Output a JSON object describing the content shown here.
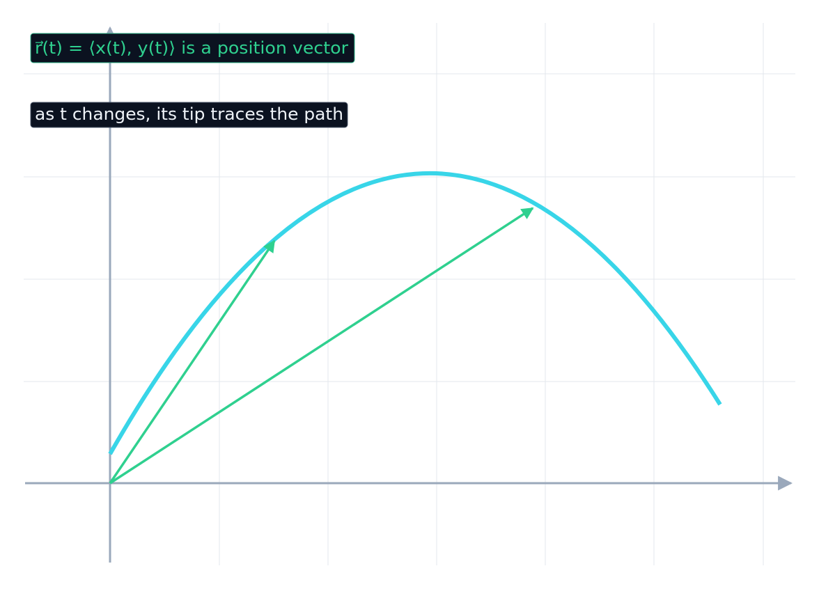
{
  "labels": {
    "definition": "r⃗(t) = ⟨x(t),  y(t)⟩  is a position vector",
    "explanation": "as t changes, its tip traces the path"
  }
}
